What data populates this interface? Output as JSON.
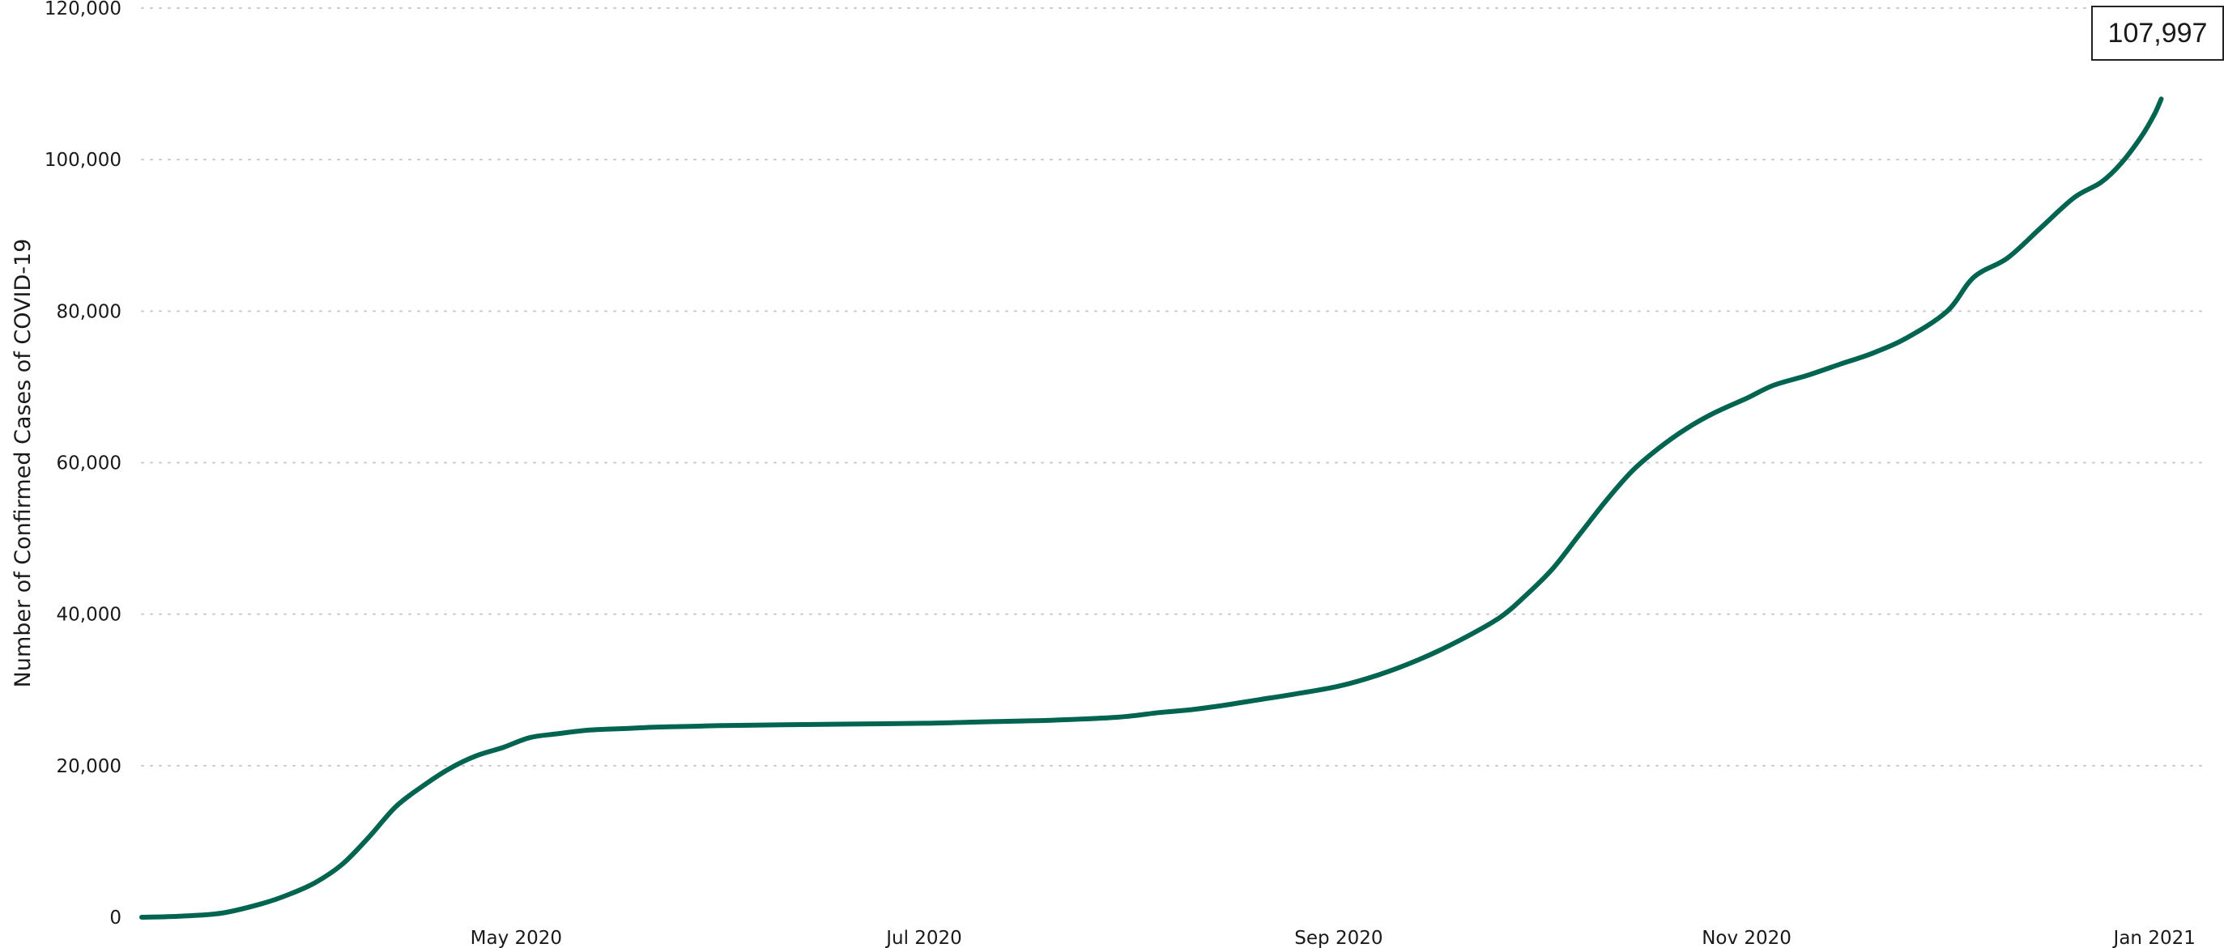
{
  "chart_data": {
    "type": "line",
    "title": "",
    "xlabel": "",
    "ylabel": "Number of Confirmed Cases of COVID-19",
    "ylim": [
      0,
      120000
    ],
    "y_ticks": [
      0,
      20000,
      40000,
      60000,
      80000,
      100000,
      120000
    ],
    "y_tick_labels": [
      "0",
      "20,000",
      "40,000",
      "60,000",
      "80,000",
      "100,000",
      "120,000"
    ],
    "x_ticks": [
      "2020-05-01",
      "2020-07-01",
      "2020-09-01",
      "2020-11-01",
      "2021-01-01"
    ],
    "x_tick_labels": [
      "May 2020",
      "Jul 2020",
      "Sep 2020",
      "Nov 2020",
      "Jan 2021"
    ],
    "xlim": [
      "2020-03-06",
      "2021-01-08"
    ],
    "grid": "horizontal dotted",
    "line_color": "#006450",
    "series": [
      {
        "x": [
          "2020-03-06",
          "2020-03-12",
          "2020-03-18",
          "2020-03-24",
          "2020-03-28",
          "2020-04-01",
          "2020-04-05",
          "2020-04-09",
          "2020-04-13",
          "2020-04-17",
          "2020-04-21",
          "2020-04-25",
          "2020-04-29",
          "2020-05-03",
          "2020-05-07",
          "2020-05-12",
          "2020-05-17",
          "2020-05-22",
          "2020-05-27",
          "2020-06-01",
          "2020-06-10",
          "2020-06-20",
          "2020-07-01",
          "2020-07-10",
          "2020-07-20",
          "2020-07-30",
          "2020-08-05",
          "2020-08-10",
          "2020-08-15",
          "2020-08-20",
          "2020-08-25",
          "2020-09-01",
          "2020-09-07",
          "2020-09-13",
          "2020-09-19",
          "2020-09-25",
          "2020-09-29",
          "2020-10-03",
          "2020-10-07",
          "2020-10-11",
          "2020-10-15",
          "2020-10-19",
          "2020-10-23",
          "2020-10-27",
          "2020-11-01",
          "2020-11-05",
          "2020-11-10",
          "2020-11-15",
          "2020-11-20",
          "2020-11-25",
          "2020-12-01",
          "2020-12-05",
          "2020-12-10",
          "2020-12-15",
          "2020-12-20",
          "2020-12-24",
          "2020-12-27",
          "2020-12-30",
          "2021-01-01",
          "2021-01-02"
        ],
        "values": [
          0,
          150,
          550,
          1800,
          3000,
          4600,
          7000,
          10600,
          14600,
          17300,
          19600,
          21300,
          22400,
          23700,
          24200,
          24700,
          24900,
          25100,
          25200,
          25300,
          25400,
          25500,
          25600,
          25800,
          26000,
          26400,
          27000,
          27400,
          28000,
          28700,
          29400,
          30500,
          32000,
          34000,
          36500,
          39500,
          42500,
          46000,
          50500,
          55000,
          59000,
          62000,
          64500,
          66500,
          68500,
          70200,
          71500,
          73000,
          74500,
          76500,
          80000,
          84500,
          87000,
          91000,
          95000,
          97000,
          99500,
          103000,
          106000,
          107997
        ]
      }
    ],
    "annotation": "107,997"
  }
}
